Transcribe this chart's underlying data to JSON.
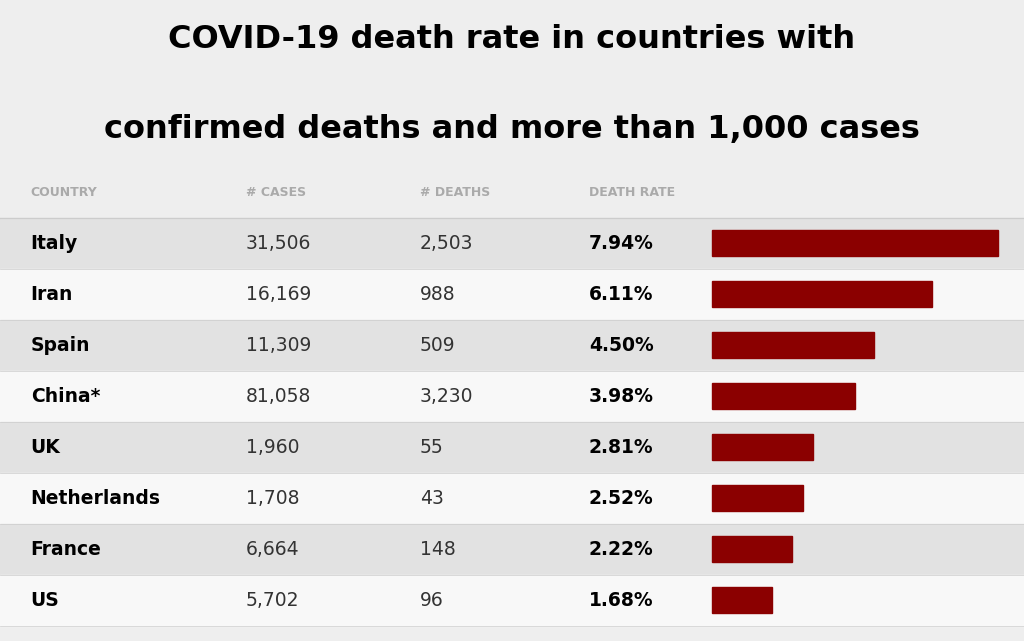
{
  "title_line1": "COVID-19 death rate in countries with",
  "title_line2": "confirmed deaths and more than 1,000 cases",
  "header_country": "COUNTRY",
  "header_cases": "# CASES",
  "header_deaths": "# DEATHS",
  "header_rate": "DEATH RATE",
  "countries": [
    "Italy",
    "Iran",
    "Spain",
    "China*",
    "UK",
    "Netherlands",
    "France",
    "US"
  ],
  "cases": [
    "31,506",
    "16,169",
    "11,309",
    "81,058",
    "1,960",
    "1,708",
    "6,664",
    "5,702"
  ],
  "deaths": [
    "2,503",
    "988",
    "509",
    "3,230",
    "55",
    "43",
    "148",
    "96"
  ],
  "death_rates": [
    7.94,
    6.11,
    4.5,
    3.98,
    2.81,
    2.52,
    2.22,
    1.68
  ],
  "death_rate_labels": [
    "7.94%",
    "6.11%",
    "4.50%",
    "3.98%",
    "2.81%",
    "2.52%",
    "2.22%",
    "1.68%"
  ],
  "bar_color": "#8B0000",
  "bar_max": 7.94,
  "background_color": "#eeeeee",
  "row_colors": [
    "#e2e2e2",
    "#f8f8f8"
  ],
  "header_bg": "#eeeeee",
  "title_color": "#000000",
  "header_text_color": "#aaaaaa",
  "country_text_color": "#000000",
  "data_text_color": "#333333",
  "rate_text_color": "#000000",
  "line_color": "#cccccc"
}
